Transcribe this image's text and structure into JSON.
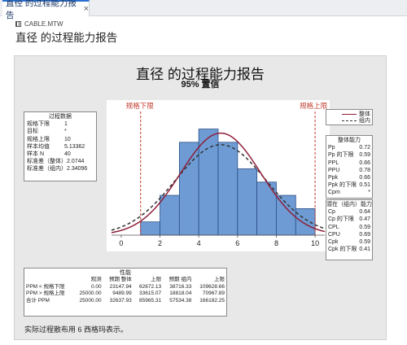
{
  "tab": {
    "label": "直径 的过程能力报告",
    "close": "×"
  },
  "worksheet": {
    "name": "CABLE.MTW"
  },
  "report_heading": "直径 的过程能力报告",
  "report": {
    "title": "直径 的过程能力报告",
    "subtitle": "95% 置信",
    "process_data": {
      "header": "过程数据",
      "rows": [
        {
          "label": "规格下限",
          "value": "1"
        },
        {
          "label": "目标",
          "value": "*"
        },
        {
          "label": "规格上限",
          "value": "10"
        },
        {
          "label": "样本均值",
          "value": "5.13362"
        },
        {
          "label": "样本 N",
          "value": "40"
        },
        {
          "label": "标准差（整体）",
          "value": "2.0744"
        },
        {
          "label": "标准差（组内）",
          "value": "2.34096"
        }
      ]
    },
    "legend": {
      "overall": "整体",
      "within": "组内"
    },
    "overall_capability": {
      "header": "整体能力",
      "rows": [
        {
          "label": "Pp",
          "value": "0.72"
        },
        {
          "label": "Pp 的下限",
          "value": "0.59"
        },
        {
          "label": "PPL",
          "value": "0.66"
        },
        {
          "label": "PPU",
          "value": "0.78"
        },
        {
          "label": "Ppk",
          "value": "0.66"
        },
        {
          "label": "Ppk 的下限",
          "value": "0.51"
        },
        {
          "label": "Cpm",
          "value": "*"
        }
      ]
    },
    "within_capability": {
      "header": "潜在（组内）能力",
      "rows": [
        {
          "label": "Cp",
          "value": "0.64"
        },
        {
          "label": "Cp 的下限",
          "value": "0.47"
        },
        {
          "label": "CPL",
          "value": "0.59"
        },
        {
          "label": "CPU",
          "value": "0.69"
        },
        {
          "label": "Cpk",
          "value": "0.59"
        },
        {
          "label": "Cpk 的下限",
          "value": "0.41"
        }
      ]
    },
    "performance": {
      "header": "性能",
      "columns": [
        "",
        "观测",
        "预期 整体",
        "上限",
        "预期 组内",
        "上限"
      ],
      "rows": [
        [
          "PPM < 规格下限",
          "0.00",
          "23147.94",
          "62672.13",
          "38716.33",
          "109628.66"
        ],
        [
          "PPM > 规格上限",
          "25000.00",
          "9489.99",
          "33615.07",
          "18818.04",
          "70967.89"
        ],
        [
          "合计 PPM",
          "25000.00",
          "32637.93",
          "85965.31",
          "57534.38",
          "166182.25"
        ]
      ]
    },
    "footnote": "实际过程散布用 6 西格玛表示。"
  },
  "chart_data": {
    "type": "bar",
    "bin_edges": [
      1,
      2,
      3,
      4,
      5,
      6,
      7,
      8,
      9,
      10
    ],
    "values": [
      1,
      3,
      7,
      8,
      7,
      5,
      4,
      3,
      2
    ],
    "xticks": [
      0,
      2,
      4,
      6,
      8,
      10
    ],
    "xlim": [
      -0.5,
      10.5
    ],
    "ylim": [
      0,
      9.2
    ],
    "lsl": {
      "value": 1,
      "label": "规格下限"
    },
    "usl": {
      "value": 10,
      "label": "规格上限"
    },
    "mean": 5.13362,
    "sd_overall": 2.0744,
    "sd_within": 2.34096,
    "n": 40,
    "bin_width": 1,
    "colors": {
      "bar": "#6e9bd4",
      "bar_edge": "#2a4f86",
      "overall": "#8e1f3a",
      "within": "#333333",
      "spec": "#c0392b"
    }
  }
}
